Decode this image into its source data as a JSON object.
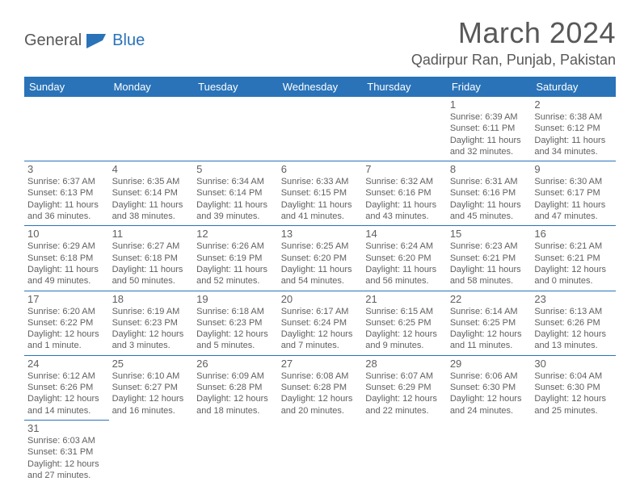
{
  "logo": {
    "text1": "General",
    "text2": "Blue",
    "flag_color": "#2a73b8"
  },
  "title": "March 2024",
  "location": "Qadirpur Ran, Punjab, Pakistan",
  "colors": {
    "header_bg": "#2a73b8",
    "header_text": "#ffffff",
    "cell_border": "#2a73b8",
    "text": "#606060",
    "title_text": "#585858"
  },
  "weekdays": [
    "Sunday",
    "Monday",
    "Tuesday",
    "Wednesday",
    "Thursday",
    "Friday",
    "Saturday"
  ],
  "weeks": [
    [
      null,
      null,
      null,
      null,
      null,
      {
        "day": "1",
        "sunrise": "Sunrise: 6:39 AM",
        "sunset": "Sunset: 6:11 PM",
        "daylight": "Daylight: 11 hours and 32 minutes."
      },
      {
        "day": "2",
        "sunrise": "Sunrise: 6:38 AM",
        "sunset": "Sunset: 6:12 PM",
        "daylight": "Daylight: 11 hours and 34 minutes."
      }
    ],
    [
      {
        "day": "3",
        "sunrise": "Sunrise: 6:37 AM",
        "sunset": "Sunset: 6:13 PM",
        "daylight": "Daylight: 11 hours and 36 minutes."
      },
      {
        "day": "4",
        "sunrise": "Sunrise: 6:35 AM",
        "sunset": "Sunset: 6:14 PM",
        "daylight": "Daylight: 11 hours and 38 minutes."
      },
      {
        "day": "5",
        "sunrise": "Sunrise: 6:34 AM",
        "sunset": "Sunset: 6:14 PM",
        "daylight": "Daylight: 11 hours and 39 minutes."
      },
      {
        "day": "6",
        "sunrise": "Sunrise: 6:33 AM",
        "sunset": "Sunset: 6:15 PM",
        "daylight": "Daylight: 11 hours and 41 minutes."
      },
      {
        "day": "7",
        "sunrise": "Sunrise: 6:32 AM",
        "sunset": "Sunset: 6:16 PM",
        "daylight": "Daylight: 11 hours and 43 minutes."
      },
      {
        "day": "8",
        "sunrise": "Sunrise: 6:31 AM",
        "sunset": "Sunset: 6:16 PM",
        "daylight": "Daylight: 11 hours and 45 minutes."
      },
      {
        "day": "9",
        "sunrise": "Sunrise: 6:30 AM",
        "sunset": "Sunset: 6:17 PM",
        "daylight": "Daylight: 11 hours and 47 minutes."
      }
    ],
    [
      {
        "day": "10",
        "sunrise": "Sunrise: 6:29 AM",
        "sunset": "Sunset: 6:18 PM",
        "daylight": "Daylight: 11 hours and 49 minutes."
      },
      {
        "day": "11",
        "sunrise": "Sunrise: 6:27 AM",
        "sunset": "Sunset: 6:18 PM",
        "daylight": "Daylight: 11 hours and 50 minutes."
      },
      {
        "day": "12",
        "sunrise": "Sunrise: 6:26 AM",
        "sunset": "Sunset: 6:19 PM",
        "daylight": "Daylight: 11 hours and 52 minutes."
      },
      {
        "day": "13",
        "sunrise": "Sunrise: 6:25 AM",
        "sunset": "Sunset: 6:20 PM",
        "daylight": "Daylight: 11 hours and 54 minutes."
      },
      {
        "day": "14",
        "sunrise": "Sunrise: 6:24 AM",
        "sunset": "Sunset: 6:20 PM",
        "daylight": "Daylight: 11 hours and 56 minutes."
      },
      {
        "day": "15",
        "sunrise": "Sunrise: 6:23 AM",
        "sunset": "Sunset: 6:21 PM",
        "daylight": "Daylight: 11 hours and 58 minutes."
      },
      {
        "day": "16",
        "sunrise": "Sunrise: 6:21 AM",
        "sunset": "Sunset: 6:21 PM",
        "daylight": "Daylight: 12 hours and 0 minutes."
      }
    ],
    [
      {
        "day": "17",
        "sunrise": "Sunrise: 6:20 AM",
        "sunset": "Sunset: 6:22 PM",
        "daylight": "Daylight: 12 hours and 1 minute."
      },
      {
        "day": "18",
        "sunrise": "Sunrise: 6:19 AM",
        "sunset": "Sunset: 6:23 PM",
        "daylight": "Daylight: 12 hours and 3 minutes."
      },
      {
        "day": "19",
        "sunrise": "Sunrise: 6:18 AM",
        "sunset": "Sunset: 6:23 PM",
        "daylight": "Daylight: 12 hours and 5 minutes."
      },
      {
        "day": "20",
        "sunrise": "Sunrise: 6:17 AM",
        "sunset": "Sunset: 6:24 PM",
        "daylight": "Daylight: 12 hours and 7 minutes."
      },
      {
        "day": "21",
        "sunrise": "Sunrise: 6:15 AM",
        "sunset": "Sunset: 6:25 PM",
        "daylight": "Daylight: 12 hours and 9 minutes."
      },
      {
        "day": "22",
        "sunrise": "Sunrise: 6:14 AM",
        "sunset": "Sunset: 6:25 PM",
        "daylight": "Daylight: 12 hours and 11 minutes."
      },
      {
        "day": "23",
        "sunrise": "Sunrise: 6:13 AM",
        "sunset": "Sunset: 6:26 PM",
        "daylight": "Daylight: 12 hours and 13 minutes."
      }
    ],
    [
      {
        "day": "24",
        "sunrise": "Sunrise: 6:12 AM",
        "sunset": "Sunset: 6:26 PM",
        "daylight": "Daylight: 12 hours and 14 minutes."
      },
      {
        "day": "25",
        "sunrise": "Sunrise: 6:10 AM",
        "sunset": "Sunset: 6:27 PM",
        "daylight": "Daylight: 12 hours and 16 minutes."
      },
      {
        "day": "26",
        "sunrise": "Sunrise: 6:09 AM",
        "sunset": "Sunset: 6:28 PM",
        "daylight": "Daylight: 12 hours and 18 minutes."
      },
      {
        "day": "27",
        "sunrise": "Sunrise: 6:08 AM",
        "sunset": "Sunset: 6:28 PM",
        "daylight": "Daylight: 12 hours and 20 minutes."
      },
      {
        "day": "28",
        "sunrise": "Sunrise: 6:07 AM",
        "sunset": "Sunset: 6:29 PM",
        "daylight": "Daylight: 12 hours and 22 minutes."
      },
      {
        "day": "29",
        "sunrise": "Sunrise: 6:06 AM",
        "sunset": "Sunset: 6:30 PM",
        "daylight": "Daylight: 12 hours and 24 minutes."
      },
      {
        "day": "30",
        "sunrise": "Sunrise: 6:04 AM",
        "sunset": "Sunset: 6:30 PM",
        "daylight": "Daylight: 12 hours and 25 minutes."
      }
    ],
    [
      {
        "day": "31",
        "sunrise": "Sunrise: 6:03 AM",
        "sunset": "Sunset: 6:31 PM",
        "daylight": "Daylight: 12 hours and 27 minutes."
      },
      null,
      null,
      null,
      null,
      null,
      null
    ]
  ]
}
